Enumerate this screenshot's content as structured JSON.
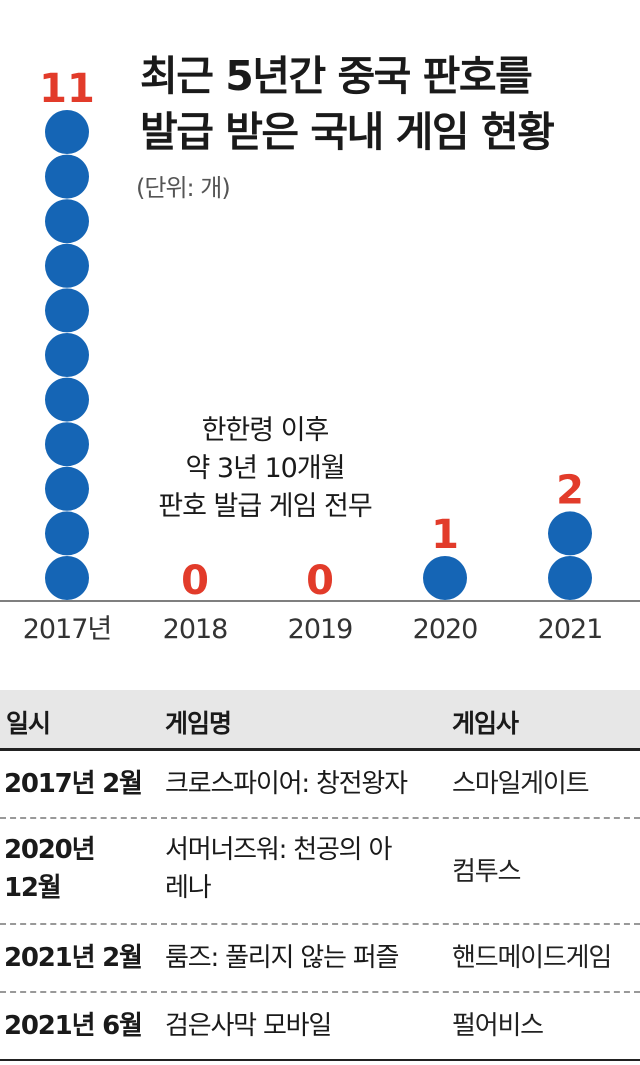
{
  "title": {
    "line1": "최근 5년간 중국 판호를",
    "line2": "발급 받은 국내 게임 현황"
  },
  "unit_label": "(단위: 개)",
  "note": [
    "한한령 이후",
    "약 3년 10개월",
    "판호 발급 게임 전무"
  ],
  "colors": {
    "dot": "#1565b5",
    "value": "#e23b2a",
    "axis": "#555555",
    "header_bg": "#e7e7e7"
  },
  "chart_data": {
    "type": "bar",
    "categories": [
      "2017년",
      "2018",
      "2019",
      "2020",
      "2021"
    ],
    "values": [
      11,
      0,
      0,
      1,
      2
    ],
    "value_labels": [
      "11",
      "0",
      "0",
      "1",
      "2"
    ],
    "mark": "stacked-dots",
    "title": "최근 5년간 중국 판호를 발급 받은 국내 게임 현황",
    "unit": "개"
  },
  "table": {
    "headers": [
      "일시",
      "게임명",
      "게임사"
    ],
    "rows": [
      {
        "date": "2017년 2월",
        "game": "크로스파이어: 창전왕자",
        "company": "스마일게이트"
      },
      {
        "date": "2020년 12월",
        "game": "서머너즈워: 천공의 아레나",
        "company": "컴투스"
      },
      {
        "date": "2021년 2월",
        "game": "룸즈: 풀리지 않는 퍼즐",
        "company": "핸드메이드게임"
      },
      {
        "date": "2021년 6월",
        "game": "검은사막 모바일",
        "company": "펄어비스"
      }
    ]
  }
}
